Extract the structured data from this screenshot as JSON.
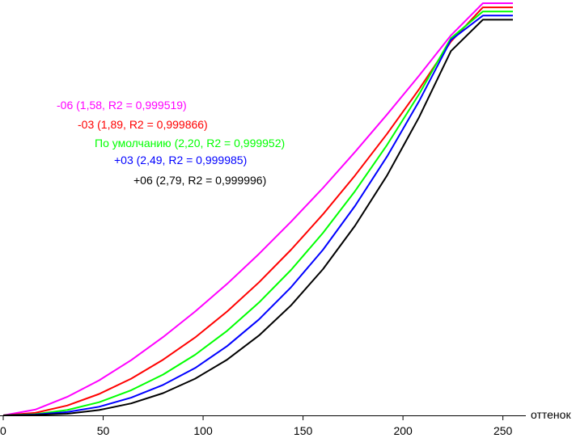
{
  "chart_data": {
    "type": "line",
    "title": "",
    "xlabel": "оттенок",
    "ylabel": "",
    "xlim": [
      0,
      255
    ],
    "ylim": [
      0,
      1
    ],
    "x_ticks": [
      0,
      50,
      100,
      150,
      200,
      250
    ],
    "x_tick_labels": [
      "0",
      "50",
      "100",
      "150",
      "200",
      "250"
    ],
    "grid": false,
    "legend_position": "top-left",
    "x": [
      0,
      16,
      32,
      48,
      64,
      80,
      96,
      112,
      128,
      144,
      160,
      176,
      192,
      208,
      224,
      240,
      255
    ],
    "series": [
      {
        "name": "-06 (1,58, R2 = 0,999519)",
        "color": "#ff00ff",
        "values": [
          0.0,
          0.014,
          0.045,
          0.085,
          0.134,
          0.19,
          0.252,
          0.319,
          0.392,
          0.47,
          0.552,
          0.639,
          0.73,
          0.824,
          0.922,
          1.0,
          1.0
        ]
      },
      {
        "name": "-03 (1,89, R2 = 0,999866)",
        "color": "#ff0000",
        "values": [
          0.0,
          0.006,
          0.024,
          0.052,
          0.089,
          0.135,
          0.189,
          0.252,
          0.323,
          0.402,
          0.488,
          0.582,
          0.683,
          0.791,
          0.907,
          0.99,
          0.99
        ]
      },
      {
        "name": "По умолчанию (2,20, R2 = 0,999952)",
        "color": "#00ff00",
        "values": [
          0.0,
          0.003,
          0.013,
          0.032,
          0.061,
          0.099,
          0.147,
          0.205,
          0.274,
          0.353,
          0.443,
          0.544,
          0.656,
          0.779,
          0.915,
          0.98,
          0.98
        ]
      },
      {
        "name": "+03 (2,49, R2 = 0,999985)",
        "color": "#0000ff",
        "values": [
          0.0,
          0.002,
          0.008,
          0.021,
          0.043,
          0.074,
          0.115,
          0.168,
          0.233,
          0.311,
          0.402,
          0.508,
          0.628,
          0.762,
          0.911,
          0.97,
          0.97
        ]
      },
      {
        "name": "+06 (2,79, R2 = 0,999996)",
        "color": "#000000",
        "values": [
          0.0,
          0.001,
          0.004,
          0.013,
          0.029,
          0.054,
          0.089,
          0.135,
          0.194,
          0.267,
          0.355,
          0.46,
          0.582,
          0.723,
          0.884,
          0.96,
          0.96
        ]
      }
    ]
  }
}
